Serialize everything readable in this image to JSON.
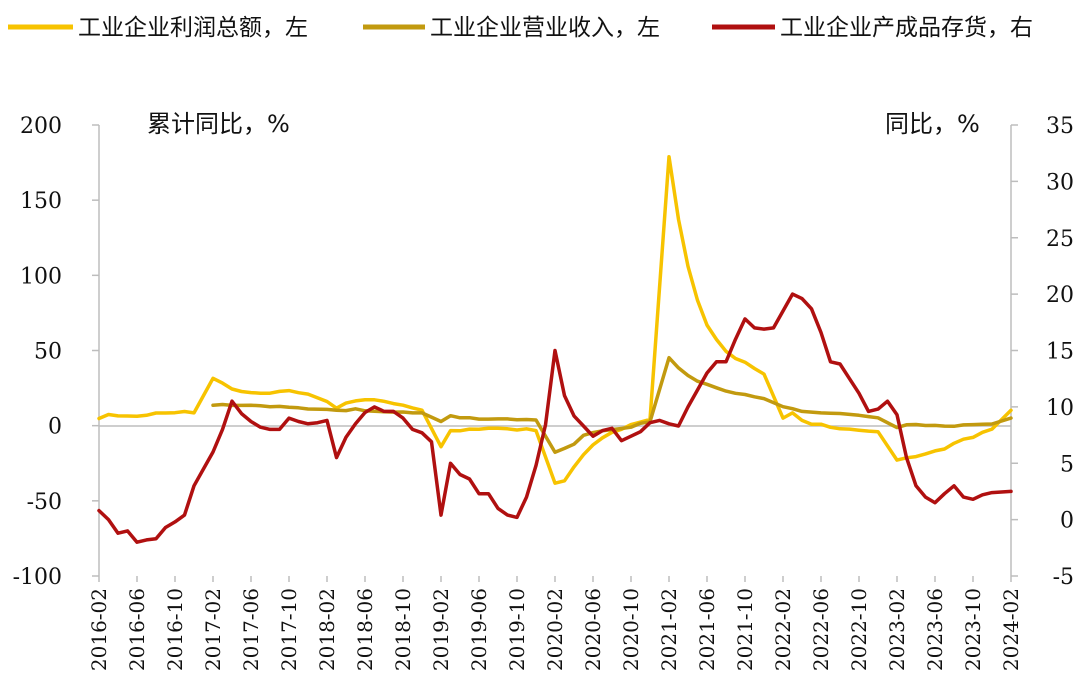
{
  "chart_data": {
    "type": "line",
    "y_left_label": "累计同比，%",
    "y_right_label": "同比，%",
    "y_left": {
      "min": -100,
      "max": 200,
      "step": 50,
      "ticks": [
        "200",
        "150",
        "100",
        "50",
        "0",
        "-50",
        "-100"
      ]
    },
    "y_right": {
      "min": -5,
      "max": 35,
      "step": 5,
      "ticks": [
        "35",
        "30",
        "25",
        "20",
        "15",
        "10",
        "5",
        "0",
        "-5"
      ]
    },
    "x_start": "2016-02",
    "x_end": "2024-02",
    "x_tick_labels": [
      "2016-02",
      "2016-06",
      "2016-10",
      "2017-02",
      "2017-06",
      "2017-10",
      "2018-02",
      "2018-06",
      "2018-10",
      "2019-02",
      "2019-06",
      "2019-10",
      "2020-02",
      "2020-06",
      "2020-10",
      "2021-02",
      "2021-06",
      "2021-10",
      "2022-02",
      "2022-06",
      "2022-10",
      "2023-02",
      "2023-06",
      "2023-10",
      "2024-02"
    ],
    "legend_position": "top",
    "grid": false,
    "series": [
      {
        "name": "工业企业利润总额，左",
        "axis": "left",
        "color": "#F7C300",
        "points": [
          [
            "2016-02",
            4.8
          ],
          [
            "2016-03",
            7.4
          ],
          [
            "2016-04",
            6.5
          ],
          [
            "2016-05",
            6.4
          ],
          [
            "2016-06",
            6.2
          ],
          [
            "2016-07",
            6.9
          ],
          [
            "2016-08",
            8.4
          ],
          [
            "2016-09",
            8.4
          ],
          [
            "2016-10",
            8.6
          ],
          [
            "2016-11",
            9.4
          ],
          [
            "2016-12",
            8.5
          ],
          [
            "2017-02",
            31.5
          ],
          [
            "2017-03",
            28.3
          ],
          [
            "2017-04",
            24.4
          ],
          [
            "2017-05",
            22.7
          ],
          [
            "2017-06",
            22.0
          ],
          [
            "2017-07",
            21.6
          ],
          [
            "2017-08",
            21.6
          ],
          [
            "2017-09",
            22.8
          ],
          [
            "2017-10",
            23.3
          ],
          [
            "2017-11",
            21.9
          ],
          [
            "2017-12",
            21.0
          ],
          [
            "2018-02",
            16.1
          ],
          [
            "2018-03",
            11.6
          ],
          [
            "2018-04",
            15.0
          ],
          [
            "2018-05",
            16.5
          ],
          [
            "2018-06",
            17.2
          ],
          [
            "2018-07",
            17.2
          ],
          [
            "2018-08",
            16.2
          ],
          [
            "2018-09",
            14.7
          ],
          [
            "2018-10",
            13.6
          ],
          [
            "2018-11",
            11.8
          ],
          [
            "2018-12",
            10.3
          ],
          [
            "2019-02",
            -14.0
          ],
          [
            "2019-03",
            -3.3
          ],
          [
            "2019-04",
            -3.4
          ],
          [
            "2019-05",
            -2.3
          ],
          [
            "2019-06",
            -2.4
          ],
          [
            "2019-07",
            -1.7
          ],
          [
            "2019-08",
            -1.7
          ],
          [
            "2019-09",
            -2.1
          ],
          [
            "2019-10",
            -2.9
          ],
          [
            "2019-11",
            -2.1
          ],
          [
            "2019-12",
            -3.3
          ],
          [
            "2020-02",
            -38.3
          ],
          [
            "2020-03",
            -36.7
          ],
          [
            "2020-04",
            -27.4
          ],
          [
            "2020-05",
            -19.3
          ],
          [
            "2020-06",
            -12.8
          ],
          [
            "2020-07",
            -8.1
          ],
          [
            "2020-08",
            -4.4
          ],
          [
            "2020-09",
            -2.4
          ],
          [
            "2020-10",
            0.7
          ],
          [
            "2020-11",
            2.4
          ],
          [
            "2020-12",
            4.1
          ],
          [
            "2021-02",
            178.9
          ],
          [
            "2021-03",
            137.3
          ],
          [
            "2021-04",
            106.0
          ],
          [
            "2021-05",
            83.4
          ],
          [
            "2021-06",
            66.9
          ],
          [
            "2021-07",
            57.3
          ],
          [
            "2021-08",
            49.5
          ],
          [
            "2021-09",
            44.7
          ],
          [
            "2021-10",
            42.2
          ],
          [
            "2021-11",
            38.0
          ],
          [
            "2021-12",
            34.3
          ],
          [
            "2022-02",
            5.0
          ],
          [
            "2022-03",
            8.5
          ],
          [
            "2022-04",
            3.5
          ],
          [
            "2022-05",
            1.0
          ],
          [
            "2022-06",
            1.0
          ],
          [
            "2022-07",
            -1.1
          ],
          [
            "2022-08",
            -2.1
          ],
          [
            "2022-09",
            -2.3
          ],
          [
            "2022-10",
            -3.0
          ],
          [
            "2022-11",
            -3.6
          ],
          [
            "2022-12",
            -4.0
          ],
          [
            "2023-02",
            -22.9
          ],
          [
            "2023-03",
            -21.4
          ],
          [
            "2023-04",
            -20.6
          ],
          [
            "2023-05",
            -18.8
          ],
          [
            "2023-06",
            -16.8
          ],
          [
            "2023-07",
            -15.5
          ],
          [
            "2023-08",
            -11.7
          ],
          [
            "2023-09",
            -9.0
          ],
          [
            "2023-10",
            -7.8
          ],
          [
            "2023-11",
            -4.4
          ],
          [
            "2023-12",
            -2.3
          ],
          [
            "2024-02",
            10.2
          ]
        ]
      },
      {
        "name": "工业企业营业收入，左",
        "axis": "left",
        "color": "#C29A0F",
        "points": [
          [
            "2017-02",
            13.6
          ],
          [
            "2017-03",
            14.1
          ],
          [
            "2017-04",
            13.5
          ],
          [
            "2017-05",
            13.5
          ],
          [
            "2017-06",
            13.6
          ],
          [
            "2017-07",
            13.2
          ],
          [
            "2017-08",
            12.6
          ],
          [
            "2017-09",
            12.8
          ],
          [
            "2017-10",
            12.2
          ],
          [
            "2017-11",
            11.9
          ],
          [
            "2017-12",
            11.1
          ],
          [
            "2018-02",
            10.8
          ],
          [
            "2018-03",
            10.3
          ],
          [
            "2018-04",
            10.0
          ],
          [
            "2018-05",
            11.2
          ],
          [
            "2018-06",
            9.9
          ],
          [
            "2018-07",
            9.6
          ],
          [
            "2018-08",
            9.2
          ],
          [
            "2018-09",
            9.0
          ],
          [
            "2018-10",
            9.1
          ],
          [
            "2018-11",
            8.5
          ],
          [
            "2018-12",
            8.5
          ],
          [
            "2019-02",
            2.8
          ],
          [
            "2019-03",
            6.6
          ],
          [
            "2019-04",
            5.2
          ],
          [
            "2019-05",
            5.3
          ],
          [
            "2019-06",
            4.4
          ],
          [
            "2019-07",
            4.4
          ],
          [
            "2019-08",
            4.5
          ],
          [
            "2019-09",
            4.5
          ],
          [
            "2019-10",
            3.9
          ],
          [
            "2019-11",
            4.1
          ],
          [
            "2019-12",
            3.8
          ],
          [
            "2020-02",
            -17.7
          ],
          [
            "2020-03",
            -15.1
          ],
          [
            "2020-04",
            -12.3
          ],
          [
            "2020-05",
            -6.4
          ],
          [
            "2020-06",
            -4.6
          ],
          [
            "2020-07",
            -3.4
          ],
          [
            "2020-08",
            -2.6
          ],
          [
            "2020-09",
            -1.9
          ],
          [
            "2020-10",
            -1.0
          ],
          [
            "2020-11",
            1.6
          ],
          [
            "2020-12",
            2.6
          ],
          [
            "2021-02",
            45.2
          ],
          [
            "2021-03",
            38.4
          ],
          [
            "2021-04",
            33.4
          ],
          [
            "2021-05",
            29.6
          ],
          [
            "2021-06",
            27.5
          ],
          [
            "2021-07",
            25.2
          ],
          [
            "2021-08",
            23.0
          ],
          [
            "2021-09",
            21.5
          ],
          [
            "2021-10",
            20.7
          ],
          [
            "2021-11",
            19.2
          ],
          [
            "2021-12",
            18.0
          ],
          [
            "2022-02",
            12.6
          ],
          [
            "2022-03",
            11.3
          ],
          [
            "2022-04",
            9.5
          ],
          [
            "2022-05",
            9.0
          ],
          [
            "2022-06",
            8.5
          ],
          [
            "2022-07",
            8.3
          ],
          [
            "2022-08",
            8.1
          ],
          [
            "2022-09",
            7.5
          ],
          [
            "2022-10",
            6.9
          ],
          [
            "2022-11",
            6.0
          ],
          [
            "2022-12",
            5.2
          ],
          [
            "2023-02",
            -1.3
          ],
          [
            "2023-03",
            0.6
          ],
          [
            "2023-04",
            0.8
          ],
          [
            "2023-05",
            0.1
          ],
          [
            "2023-06",
            0.2
          ],
          [
            "2023-07",
            -0.3
          ],
          [
            "2023-08",
            -0.4
          ],
          [
            "2023-09",
            0.5
          ],
          [
            "2023-10",
            0.7
          ],
          [
            "2023-11",
            1.0
          ],
          [
            "2023-12",
            1.1
          ],
          [
            "2024-02",
            5.0
          ]
        ]
      },
      {
        "name": "工业企业产成品存货，右",
        "axis": "right",
        "color": "#B01010",
        "points": [
          [
            "2016-02",
            0.8
          ],
          [
            "2016-03",
            0.0
          ],
          [
            "2016-04",
            -1.2
          ],
          [
            "2016-05",
            -1.0
          ],
          [
            "2016-06",
            -2.0
          ],
          [
            "2016-07",
            -1.8
          ],
          [
            "2016-08",
            -1.7
          ],
          [
            "2016-09",
            -0.7
          ],
          [
            "2016-10",
            -0.2
          ],
          [
            "2016-11",
            0.4
          ],
          [
            "2016-12",
            3.0
          ],
          [
            "2017-01",
            4.5
          ],
          [
            "2017-02",
            6.0
          ],
          [
            "2017-03",
            8.0
          ],
          [
            "2017-04",
            10.5
          ],
          [
            "2017-05",
            9.4
          ],
          [
            "2017-06",
            8.7
          ],
          [
            "2017-07",
            8.2
          ],
          [
            "2017-08",
            8.0
          ],
          [
            "2017-09",
            8.0
          ],
          [
            "2017-10",
            9.0
          ],
          [
            "2017-11",
            8.7
          ],
          [
            "2017-12",
            8.5
          ],
          [
            "2018-01",
            8.6
          ],
          [
            "2018-02",
            8.8
          ],
          [
            "2018-03",
            5.5
          ],
          [
            "2018-04",
            7.3
          ],
          [
            "2018-05",
            8.5
          ],
          [
            "2018-06",
            9.5
          ],
          [
            "2018-07",
            10.0
          ],
          [
            "2018-08",
            9.6
          ],
          [
            "2018-09",
            9.6
          ],
          [
            "2018-10",
            9.0
          ],
          [
            "2018-11",
            8.0
          ],
          [
            "2018-12",
            7.7
          ],
          [
            "2019-01",
            6.9
          ],
          [
            "2019-02",
            0.4
          ],
          [
            "2019-03",
            5.0
          ],
          [
            "2019-04",
            4.0
          ],
          [
            "2019-05",
            3.6
          ],
          [
            "2019-06",
            2.3
          ],
          [
            "2019-07",
            2.3
          ],
          [
            "2019-08",
            1.0
          ],
          [
            "2019-09",
            0.4
          ],
          [
            "2019-10",
            0.2
          ],
          [
            "2019-11",
            2.0
          ],
          [
            "2019-12",
            4.8
          ],
          [
            "2020-01",
            8.4
          ],
          [
            "2020-02",
            15.0
          ],
          [
            "2020-03",
            11.0
          ],
          [
            "2020-04",
            9.2
          ],
          [
            "2020-05",
            8.3
          ],
          [
            "2020-06",
            7.4
          ],
          [
            "2020-07",
            7.9
          ],
          [
            "2020-08",
            8.1
          ],
          [
            "2020-09",
            7.0
          ],
          [
            "2020-10",
            7.4
          ],
          [
            "2020-11",
            7.8
          ],
          [
            "2020-12",
            8.6
          ],
          [
            "2021-01",
            8.8
          ],
          [
            "2021-02",
            8.5
          ],
          [
            "2021-03",
            8.3
          ],
          [
            "2021-04",
            10.0
          ],
          [
            "2021-05",
            11.5
          ],
          [
            "2021-06",
            13.0
          ],
          [
            "2021-07",
            14.0
          ],
          [
            "2021-08",
            14.0
          ],
          [
            "2021-09",
            16.0
          ],
          [
            "2021-10",
            17.8
          ],
          [
            "2021-11",
            17.0
          ],
          [
            "2021-12",
            16.9
          ],
          [
            "2022-01",
            17.0
          ],
          [
            "2022-02",
            18.5
          ],
          [
            "2022-03",
            20.0
          ],
          [
            "2022-04",
            19.6
          ],
          [
            "2022-05",
            18.7
          ],
          [
            "2022-06",
            16.6
          ],
          [
            "2022-07",
            14.0
          ],
          [
            "2022-08",
            13.8
          ],
          [
            "2022-09",
            12.5
          ],
          [
            "2022-10",
            11.2
          ],
          [
            "2022-11",
            9.6
          ],
          [
            "2022-12",
            9.8
          ],
          [
            "2023-01",
            10.5
          ],
          [
            "2023-02",
            9.3
          ],
          [
            "2023-03",
            5.5
          ],
          [
            "2023-04",
            3.0
          ],
          [
            "2023-05",
            2.0
          ],
          [
            "2023-06",
            1.5
          ],
          [
            "2023-07",
            2.3
          ],
          [
            "2023-08",
            3.0
          ],
          [
            "2023-09",
            2.0
          ],
          [
            "2023-10",
            1.8
          ],
          [
            "2023-11",
            2.2
          ],
          [
            "2023-12",
            2.4
          ],
          [
            "2024-02",
            2.5
          ]
        ]
      }
    ]
  }
}
